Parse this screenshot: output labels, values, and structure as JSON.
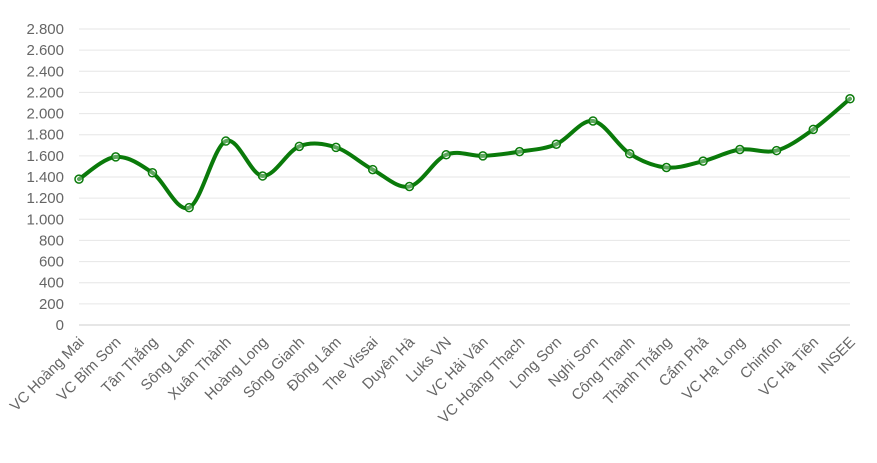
{
  "chart_data": {
    "type": "line",
    "title": "",
    "xlabel": "",
    "ylabel": "",
    "categories": [
      "VC Hoàng Mai",
      "VC Bỉm Sơn",
      "Tân Thắng",
      "Sông Lam",
      "Xuân Thành",
      "Hoàng Long",
      "Sông Gianh",
      "Đồng Lâm",
      "The Vissai",
      "Duyên Hà",
      "Luks VN",
      "VC Hải Vân",
      "VC Hoàng Thạch",
      "Long Sơn",
      "Nghi Sơn",
      "Công Thanh",
      "Thành Thắng",
      "Cẩm Phả",
      "VC Hạ Long",
      "Chinfon",
      "VC Hà Tiên",
      "INSEE"
    ],
    "series": [
      {
        "values": [
          1380,
          1590,
          1440,
          1110,
          1740,
          1410,
          1690,
          1680,
          1470,
          1310,
          1610,
          1600,
          1640,
          1710,
          1930,
          1620,
          1490,
          1550,
          1660,
          1650,
          1850,
          2140
        ],
        "color": "#0a7a0a"
      }
    ],
    "ylim": [
      0,
      2800
    ],
    "yticks": [
      0,
      200,
      400,
      600,
      800,
      1000,
      1200,
      1400,
      1600,
      1800,
      2000,
      2200,
      2400,
      2600,
      2800
    ],
    "ytick_labels": [
      "0",
      "200",
      "400",
      "600",
      "800",
      "1.000",
      "1.200",
      "1.400",
      "1.600",
      "1.800",
      "2.000",
      "2.200",
      "2.400",
      "2.600",
      "2.800"
    ],
    "grid": true,
    "legend": "none",
    "smooth": true
  }
}
